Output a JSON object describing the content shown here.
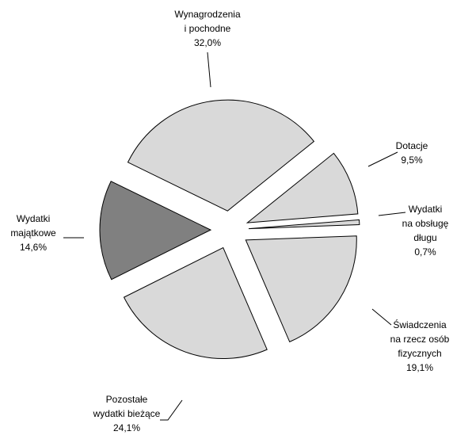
{
  "chart_data": {
    "type": "pie",
    "categories": [
      [
        "Wynagrodzenia",
        "i pochodne"
      ],
      [
        "Dotacje"
      ],
      [
        "Wydatki",
        "na obsługę",
        "długu"
      ],
      [
        "Świadczenia",
        "na rzecz osób",
        "fizycznych"
      ],
      [
        "Pozostałe",
        "wydatki bieżące"
      ],
      [
        "Wydatki",
        "majątkowe"
      ]
    ],
    "values": [
      32.0,
      9.5,
      0.7,
      19.1,
      24.1,
      14.6
    ],
    "value_labels": [
      "32,0%",
      "9,5%",
      "0,7%",
      "19,1%",
      "24,1%",
      "14,6%"
    ],
    "colors": [
      "#d9d9d9",
      "#d9d9d9",
      "#d9d9d9",
      "#d9d9d9",
      "#d9d9d9",
      "#808080"
    ]
  }
}
